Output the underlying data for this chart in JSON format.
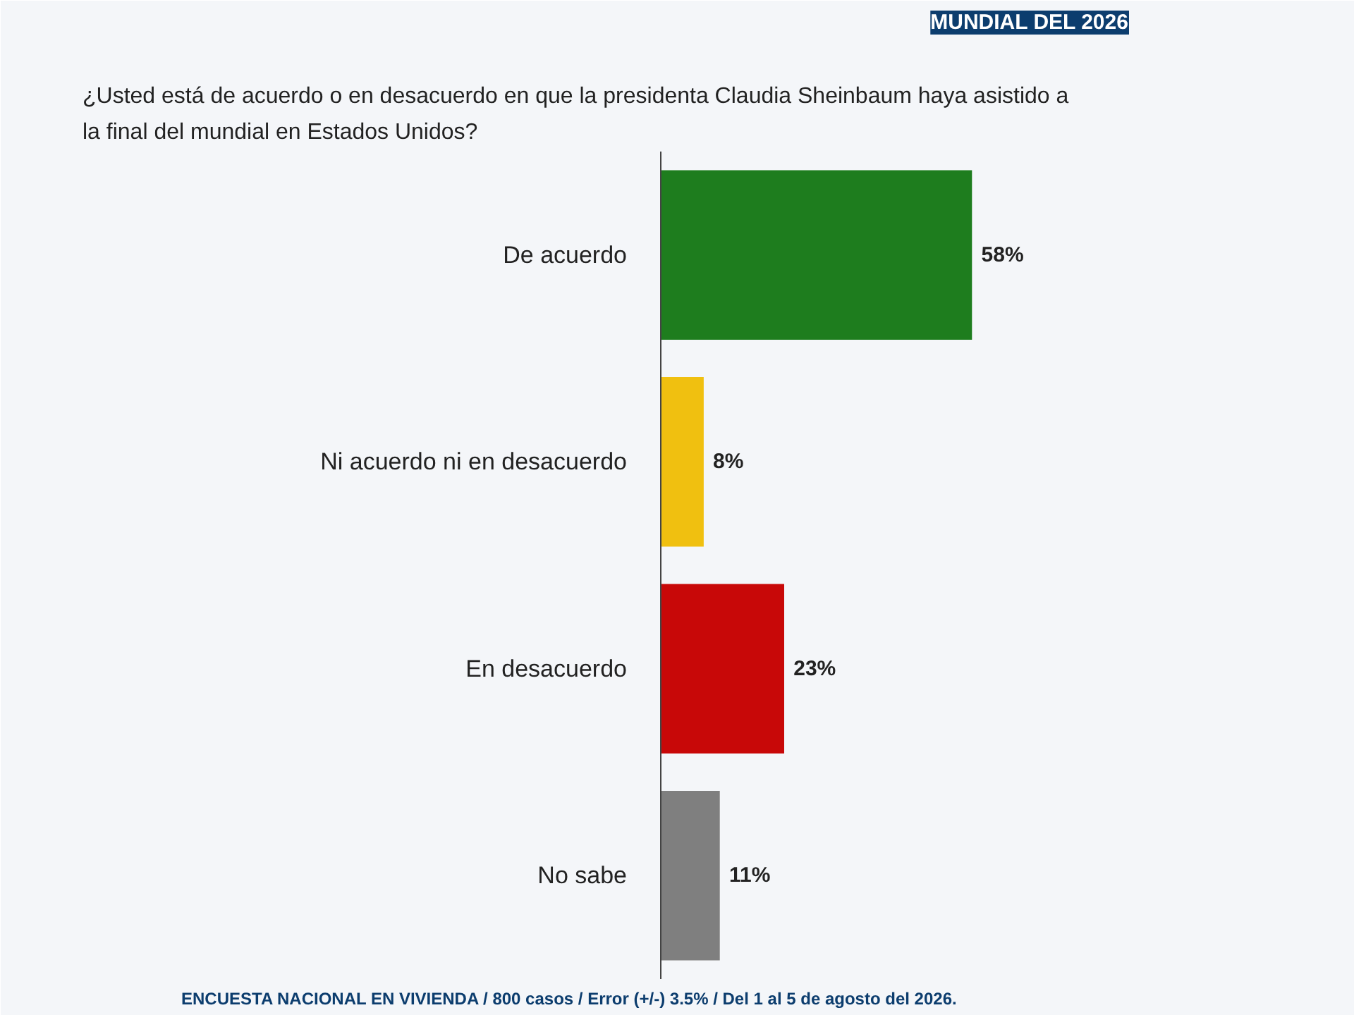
{
  "chart_data": {
    "type": "bar",
    "orientation": "horizontal",
    "title": "¿Usted está de acuerdo o en desacuerdo en que la presidenta Claudia Sheinbaum haya asistido a la final del mundial en Estados Unidos?",
    "categories": [
      "De acuerdo",
      "Ni acuerdo ni en desacuerdo",
      "En desacuerdo",
      "No sabe"
    ],
    "values": [
      58,
      8,
      23,
      11
    ],
    "colors": [
      "#1e7d1e",
      "#f0c010",
      "#c80808",
      "#7f7f7f"
    ],
    "value_labels": [
      "58%",
      "8%",
      "23%",
      "11%"
    ],
    "annotations": [
      "MUNDIAL DEL 2026",
      "ENCUESTA NACIONAL EN VIVIENDA / 800 casos / Error (+/-) 3.5% / Del 1 al 5 de agosto del 2026."
    ],
    "grid": false,
    "legend": false
  }
}
